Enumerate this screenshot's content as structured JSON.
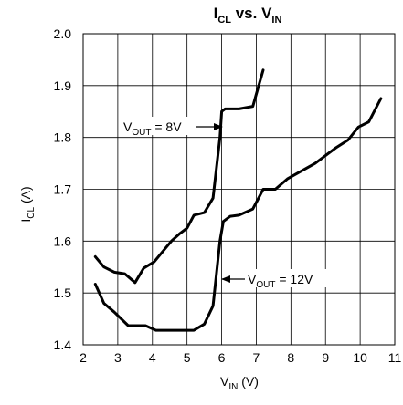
{
  "chart_data": {
    "type": "line",
    "title": {
      "base1": "I",
      "sub1": "CL",
      "mid": " vs. V",
      "sub2": "IN"
    },
    "xlabel": {
      "base": "V",
      "sub": "IN",
      "rest": " (V)"
    },
    "ylabel": {
      "base": "I",
      "sub": "CL",
      "rest": " (A)"
    },
    "xlim": [
      2,
      11
    ],
    "ylim": [
      1.4,
      2.0
    ],
    "xticks": [
      "2",
      "3",
      "4",
      "5",
      "6",
      "7",
      "8",
      "9",
      "10",
      "11"
    ],
    "yticks": [
      "1.4",
      "1.5",
      "1.6",
      "1.7",
      "1.8",
      "1.9",
      "2.0"
    ],
    "grid": true,
    "series": [
      {
        "x": [
          2.35,
          2.6,
          2.9,
          3.3,
          3.6,
          3.8,
          4.1,
          4.4,
          4.7,
          4.95,
          5.2,
          5.5,
          5.75,
          5.95,
          6.05,
          6.25,
          6.5,
          6.9,
          7.2,
          7.55,
          7.9,
          8.3,
          8.7,
          9.0,
          9.3,
          9.65,
          9.95,
          10.25,
          10.6
        ],
        "y": [
          1.517,
          1.48,
          1.463,
          1.437,
          1.437,
          1.437,
          1.428,
          1.428,
          1.428,
          1.428,
          1.428,
          1.44,
          1.475,
          1.6,
          1.638,
          1.648,
          1.65,
          1.662,
          1.7,
          1.7,
          1.72,
          1.735,
          1.75,
          1.765,
          1.78,
          1.795,
          1.82,
          1.83,
          1.875
        ]
      },
      {
        "x": [
          2.35,
          2.6,
          2.9,
          3.2,
          3.5,
          3.75,
          4.05,
          4.3,
          4.55,
          4.8,
          5.0,
          5.2,
          5.5,
          5.75,
          5.95,
          6.0,
          6.1,
          6.3,
          6.5,
          6.9,
          7.05,
          7.2
        ],
        "y": [
          1.57,
          1.55,
          1.54,
          1.537,
          1.52,
          1.548,
          1.56,
          1.58,
          1.6,
          1.615,
          1.625,
          1.65,
          1.655,
          1.683,
          1.8,
          1.85,
          1.855,
          1.855,
          1.855,
          1.86,
          1.895,
          1.93
        ]
      }
    ],
    "annotations": [
      {
        "base": "V",
        "sub": "OUT",
        "rest": " = 8V"
      },
      {
        "base": "V",
        "sub": "OUT",
        "rest": " = 12V"
      }
    ]
  }
}
